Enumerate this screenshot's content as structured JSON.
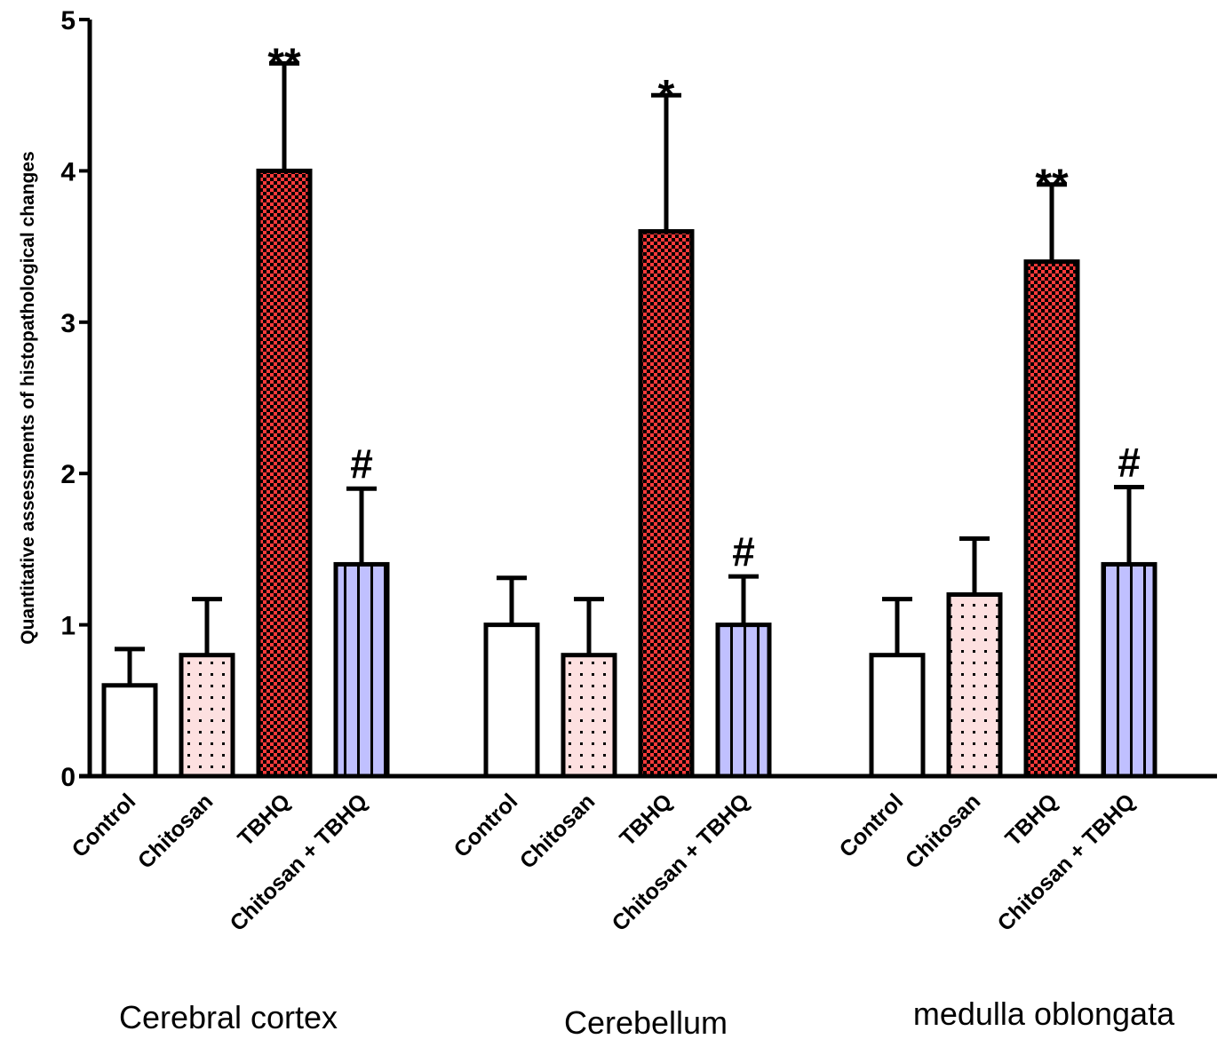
{
  "chart_data": {
    "type": "bar",
    "title": "",
    "xlabel": "",
    "ylabel": "Quantitative assessments of histopathological changes",
    "ylim": [
      0,
      5
    ],
    "yticks": [
      0,
      1,
      2,
      3,
      4,
      5
    ],
    "grid": false,
    "legend": "none",
    "categories": [
      "Control",
      "Chitosan",
      "TBHQ",
      "Chitosan + TBHQ"
    ],
    "groups": [
      {
        "name": "Cerebral cortex",
        "values": [
          0.6,
          0.8,
          4.0,
          1.4
        ],
        "errors": [
          0.24,
          0.37,
          0.71,
          0.5
        ],
        "annotations": [
          "",
          "",
          "**",
          "#"
        ]
      },
      {
        "name": "Cerebellum",
        "values": [
          1.0,
          0.8,
          3.6,
          1.0
        ],
        "errors": [
          0.31,
          0.37,
          0.9,
          0.32
        ],
        "annotations": [
          "",
          "",
          "*",
          "#"
        ]
      },
      {
        "name": "medulla oblongata",
        "values": [
          0.8,
          1.2,
          3.4,
          1.4
        ],
        "errors": [
          0.37,
          0.37,
          0.51,
          0.51
        ],
        "annotations": [
          "",
          "",
          "**",
          "#"
        ]
      }
    ],
    "series_styles": [
      {
        "category": "Control",
        "fill": "#ffffff",
        "pattern": "none"
      },
      {
        "category": "Chitosan",
        "fill": "#fde0e0",
        "pattern": "dots"
      },
      {
        "category": "TBHQ",
        "fill": "#ff3b3b",
        "pattern": "checker"
      },
      {
        "category": "Chitosan + TBHQ",
        "fill": "#c0c0ff",
        "pattern": "vertical-lines"
      }
    ]
  }
}
